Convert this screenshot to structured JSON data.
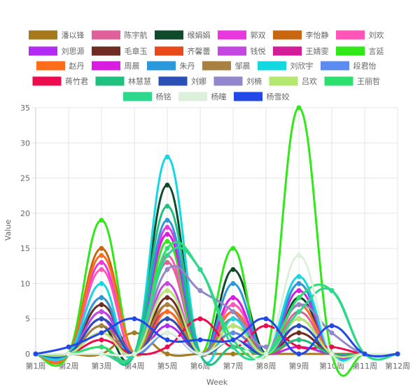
{
  "chart_data": {
    "type": "line",
    "xlabel": "Week",
    "ylabel": "Value",
    "ylim": [
      0,
      35
    ],
    "yticks": [
      0,
      5,
      10,
      15,
      20,
      25,
      30,
      35
    ],
    "grid": true,
    "legend_position": "top",
    "categories": [
      "第1周",
      "第2周",
      "第3周",
      "第4周",
      "第5周",
      "第6周",
      "第7周",
      "第8周",
      "第9周",
      "第10周",
      "第11周",
      "第12周"
    ],
    "series": [
      {
        "name": "潘以锋",
        "color": "#A67A1A",
        "values": [
          0,
          0,
          0,
          3,
          0,
          0,
          0,
          0,
          0,
          0,
          0,
          0
        ]
      },
      {
        "name": "陈宇航",
        "color": "#E0609A",
        "values": [
          0,
          0,
          8,
          0,
          13,
          0,
          7,
          0,
          6,
          0,
          0,
          0
        ]
      },
      {
        "name": "缑娟娟",
        "color": "#0F4A2D",
        "values": [
          0,
          0,
          4,
          0,
          24,
          0,
          12,
          0,
          8,
          0,
          0,
          0
        ]
      },
      {
        "name": "郭双",
        "color": "#E838E0",
        "values": [
          0,
          0,
          13,
          0,
          18,
          0,
          8,
          0,
          10,
          0,
          0,
          0
        ]
      },
      {
        "name": "李怡静",
        "color": "#C8670F",
        "values": [
          0,
          0,
          15,
          0,
          7,
          0,
          4,
          0,
          3,
          0,
          0,
          0
        ]
      },
      {
        "name": "刘欢",
        "color": "#FF55B8",
        "values": [
          0,
          0,
          12,
          0,
          14,
          0,
          7,
          0,
          7,
          0,
          0,
          0
        ]
      },
      {
        "name": "刘思源",
        "color": "#B22BF2",
        "values": [
          0,
          0,
          6,
          0,
          4,
          0,
          2,
          0,
          1,
          0,
          0,
          0
        ]
      },
      {
        "name": "毛章玉",
        "color": "#6E2C22",
        "values": [
          0,
          0,
          7,
          0,
          8,
          0,
          4,
          0,
          3,
          0,
          0,
          0
        ]
      },
      {
        "name": "齐馨蕾",
        "color": "#E84A1A",
        "values": [
          0,
          0,
          5,
          0,
          5,
          0,
          3,
          0,
          2,
          0,
          0,
          0
        ]
      },
      {
        "name": "钱悦",
        "color": "#C248E0",
        "values": [
          0,
          0,
          6,
          0,
          10,
          0,
          6,
          0,
          5,
          0,
          0,
          0
        ]
      },
      {
        "name": "王婧雯",
        "color": "#D21C98",
        "values": [
          0,
          0,
          3,
          0,
          6,
          0,
          5,
          0,
          4,
          0,
          0,
          0
        ]
      },
      {
        "name": "言延",
        "color": "#30E818",
        "values": [
          0,
          0,
          19,
          0,
          16,
          0,
          15,
          0,
          35,
          0,
          0,
          0
        ]
      },
      {
        "name": "赵丹",
        "color": "#FF6C1A",
        "values": [
          0,
          0,
          14,
          0,
          6,
          0,
          6,
          0,
          7,
          0,
          0,
          0
        ]
      },
      {
        "name": "周晨",
        "color": "#D81CE0",
        "values": [
          0,
          0,
          5,
          0,
          17,
          0,
          8,
          0,
          9,
          0,
          0,
          0
        ]
      },
      {
        "name": "朱丹",
        "color": "#2A98DA",
        "values": [
          0,
          0,
          8,
          0,
          19,
          0,
          10,
          0,
          10,
          0,
          0,
          0
        ]
      },
      {
        "name": "邹晨",
        "color": "#A88040",
        "values": [
          0,
          0,
          4,
          0,
          7,
          0,
          5,
          0,
          5,
          0,
          0,
          0
        ]
      },
      {
        "name": "刘欣宇",
        "color": "#14D8E0",
        "values": [
          0,
          0,
          10,
          0,
          28,
          0,
          5,
          0,
          11,
          0,
          0,
          0
        ]
      },
      {
        "name": "段君怡",
        "color": "#5C8CF0",
        "values": [
          0,
          0,
          5,
          0,
          3,
          0,
          3,
          0,
          4,
          0,
          0,
          0
        ]
      },
      {
        "name": "蒋竹君",
        "color": "#EC0C50",
        "values": [
          0,
          0,
          2,
          0,
          1,
          5,
          1,
          4,
          1,
          1,
          0,
          0
        ]
      },
      {
        "name": "林慧慧",
        "color": "#20C080",
        "values": [
          0,
          0,
          1,
          0,
          21,
          0,
          1,
          0,
          2,
          0,
          0,
          0
        ]
      },
      {
        "name": "刘娜",
        "color": "#2A50B8",
        "values": [
          0,
          0,
          5,
          0,
          5,
          0,
          2,
          0,
          4,
          0,
          0,
          0
        ]
      },
      {
        "name": "刘楠",
        "color": "#9286CC",
        "values": [
          0,
          0,
          0,
          0,
          12,
          9,
          6,
          1,
          7,
          3,
          0,
          0
        ]
      },
      {
        "name": "吕欢",
        "color": "#B4E870",
        "values": [
          0,
          0,
          3,
          0,
          9,
          0,
          4,
          0,
          5,
          0,
          0,
          0
        ]
      },
      {
        "name": "王丽哲",
        "color": "#2CE070",
        "values": [
          0,
          0,
          1,
          0,
          15,
          12,
          2,
          0,
          8,
          9,
          0,
          0
        ]
      },
      {
        "name": "杨铭",
        "color": "#2CD88C",
        "values": [
          0,
          0,
          0,
          0,
          14,
          12,
          1,
          0,
          6,
          9,
          0,
          0
        ]
      },
      {
        "name": "杨曈",
        "color": "#DCF0DC",
        "values": [
          0,
          0,
          0,
          0,
          3,
          0,
          2,
          0,
          14,
          0,
          0,
          0
        ]
      },
      {
        "name": "杨雪姣",
        "color": "#2248E8",
        "values": [
          0,
          1,
          3,
          5,
          2,
          2,
          2,
          5,
          0,
          4,
          0,
          0
        ]
      }
    ]
  }
}
